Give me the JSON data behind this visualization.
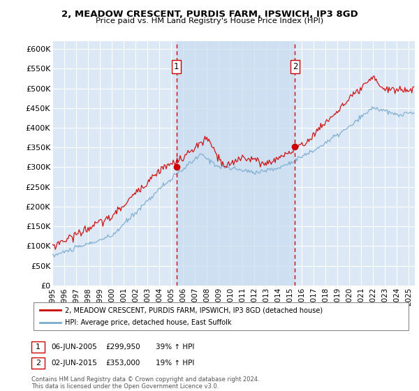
{
  "title": "2, MEADOW CRESCENT, PURDIS FARM, IPSWICH, IP3 8GD",
  "subtitle": "Price paid vs. HM Land Registry's House Price Index (HPI)",
  "ylim": [
    0,
    620000
  ],
  "yticks": [
    0,
    50000,
    100000,
    150000,
    200000,
    250000,
    300000,
    350000,
    400000,
    450000,
    500000,
    550000,
    600000
  ],
  "xlim_start": 1995.0,
  "xlim_end": 2025.5,
  "background_color": "#ffffff",
  "plot_bg_color": "#dce8f5",
  "plot_bg_between": "#dce8f5",
  "grid_color": "#ffffff",
  "red_line_color": "#cc0000",
  "blue_line_color": "#7aabcf",
  "sale1_x": 2005.44,
  "sale1_y": 299950,
  "sale1_label": "1",
  "sale1_date": "06-JUN-2005",
  "sale1_price": "£299,950",
  "sale1_pct": "39% ↑ HPI",
  "sale2_x": 2015.42,
  "sale2_y": 353000,
  "sale2_label": "2",
  "sale2_date": "02-JUN-2015",
  "sale2_price": "£353,000",
  "sale2_pct": "19% ↑ HPI",
  "legend_line1": "2, MEADOW CRESCENT, PURDIS FARM, IPSWICH, IP3 8GD (detached house)",
  "legend_line2": "HPI: Average price, detached house, East Suffolk",
  "footnote": "Contains HM Land Registry data © Crown copyright and database right 2024.\nThis data is licensed under the Open Government Licence v3.0.",
  "xtick_years": [
    1995,
    1996,
    1997,
    1998,
    1999,
    2000,
    2001,
    2002,
    2003,
    2004,
    2005,
    2006,
    2007,
    2008,
    2009,
    2010,
    2011,
    2012,
    2013,
    2014,
    2015,
    2016,
    2017,
    2018,
    2019,
    2020,
    2021,
    2022,
    2023,
    2024,
    2025
  ]
}
